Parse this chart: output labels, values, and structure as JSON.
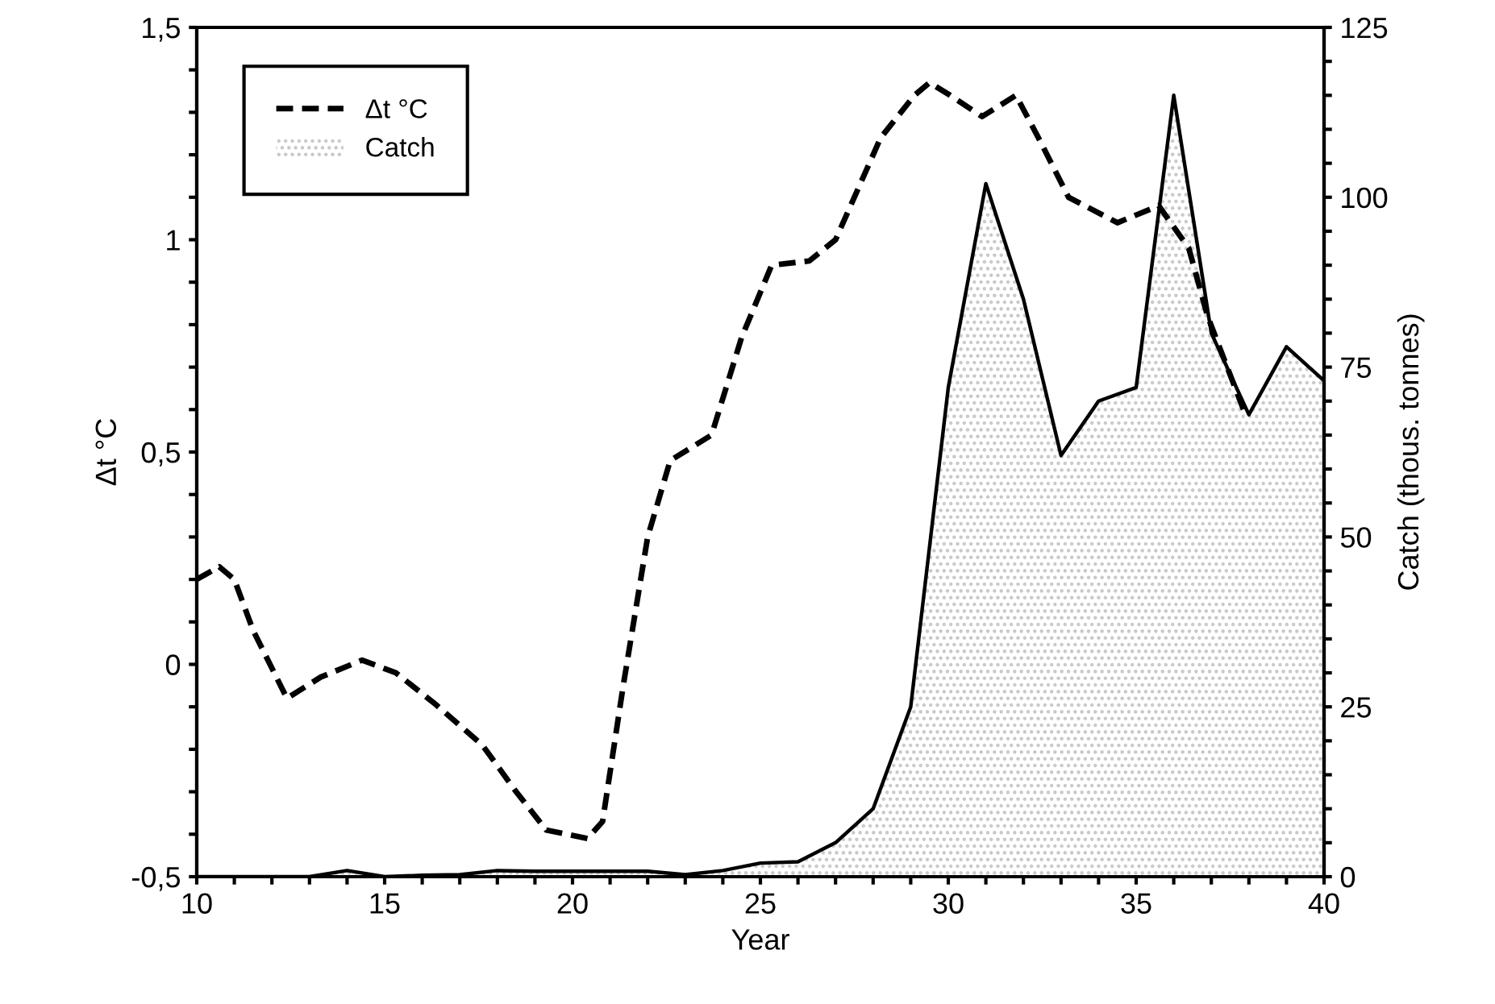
{
  "chart_data": {
    "type": "line",
    "xlabel": "Year",
    "ylabel": "Δt °C",
    "y2label": "Catch (thous. tonnes)",
    "legend": "top left",
    "xlim": [
      10,
      40
    ],
    "xticks": [
      10,
      {
        "value": 11,
        "label": null
      },
      {
        "value": 12,
        "label": null
      },
      {
        "value": 13,
        "label": null
      },
      {
        "value": 14,
        "label": null
      },
      15,
      {
        "value": 16,
        "label": null
      },
      {
        "value": 17,
        "label": null
      },
      {
        "value": 18,
        "label": null
      },
      {
        "value": 19,
        "label": null
      },
      20,
      {
        "value": 21,
        "label": null
      },
      {
        "value": 22,
        "label": null
      },
      {
        "value": 23,
        "label": null
      },
      {
        "value": 24,
        "label": null
      },
      25,
      {
        "value": 26,
        "label": null
      },
      {
        "value": 27,
        "label": null
      },
      {
        "value": 28,
        "label": null
      },
      {
        "value": 29,
        "label": null
      },
      30,
      {
        "value": 31,
        "label": null
      },
      {
        "value": 32,
        "label": null
      },
      {
        "value": 33,
        "label": null
      },
      {
        "value": 34,
        "label": null
      },
      35,
      {
        "value": 36,
        "label": null
      },
      {
        "value": 37,
        "label": null
      },
      {
        "value": 38,
        "label": null
      },
      {
        "value": 39,
        "label": null
      },
      40
    ],
    "ylim": [
      -0.5,
      1.5
    ],
    "yticks": [
      {
        "value": -0.5,
        "label": "-0,5"
      },
      {
        "value": -0.4,
        "label": null
      },
      {
        "value": -0.3,
        "label": null
      },
      {
        "value": -0.2,
        "label": null
      },
      {
        "value": -0.1,
        "label": null
      },
      0,
      {
        "value": 0.1,
        "label": null
      },
      {
        "value": 0.2,
        "label": null
      },
      {
        "value": 0.3,
        "label": null
      },
      {
        "value": 0.4,
        "label": null
      },
      {
        "value": 0.5,
        "label": "0,5"
      },
      {
        "value": 0.6,
        "label": null
      },
      {
        "value": 0.7,
        "label": null
      },
      {
        "value": 0.8,
        "label": null
      },
      {
        "value": 0.9,
        "label": null
      },
      1,
      {
        "value": 1.1,
        "label": null
      },
      {
        "value": 1.2,
        "label": null
      },
      {
        "value": 1.3,
        "label": null
      },
      {
        "value": 1.4,
        "label": null
      },
      {
        "value": 1.5,
        "label": "1,5"
      }
    ],
    "y2lim": [
      0,
      125
    ],
    "y2ticks": [
      0,
      {
        "value": 5,
        "label": null
      },
      {
        "value": 10,
        "label": null
      },
      {
        "value": 15,
        "label": null
      },
      {
        "value": 20,
        "label": null
      },
      25,
      {
        "value": 30,
        "label": null
      },
      {
        "value": 35,
        "label": null
      },
      {
        "value": 40,
        "label": null
      },
      {
        "value": 45,
        "label": null
      },
      50,
      {
        "value": 55,
        "label": null
      },
      {
        "value": 60,
        "label": null
      },
      {
        "value": 65,
        "label": null
      },
      {
        "value": 70,
        "label": null
      },
      75,
      {
        "value": 80,
        "label": null
      },
      {
        "value": 85,
        "label": null
      },
      {
        "value": 90,
        "label": null
      },
      {
        "value": 95,
        "label": null
      },
      100,
      {
        "value": 105,
        "label": null
      },
      {
        "value": 110,
        "label": null
      },
      {
        "value": 115,
        "label": null
      },
      {
        "value": 120,
        "label": null
      },
      125
    ],
    "series": [
      {
        "name": "Δt °C",
        "color": "#000000",
        "line_style": "dashed",
        "x": [
          10,
          10.6,
          11.0,
          11.5,
          12.4,
          13.3,
          14.4,
          15.3,
          16.3,
          17.6,
          18.5,
          19.3,
          20.4,
          20.8,
          21.35,
          22.0,
          22.6,
          23.7,
          24.5,
          25.3,
          26.3,
          27.0,
          28.2,
          29.1,
          29.5,
          30.05,
          30.9,
          31.8,
          32.4,
          33.2,
          34.5,
          35.6,
          36.4,
          36.9,
          37.9
        ],
        "values": [
          0.2,
          0.23,
          0.2,
          0.08,
          -0.08,
          -0.03,
          0.01,
          -0.02,
          -0.09,
          -0.19,
          -0.3,
          -0.39,
          -0.41,
          -0.37,
          -0.05,
          0.3,
          0.48,
          0.54,
          0.77,
          0.94,
          0.95,
          1.0,
          1.24,
          1.34,
          1.37,
          1.34,
          1.29,
          1.34,
          1.24,
          1.1,
          1.04,
          1.08,
          0.98,
          0.82,
          0.59
        ]
      },
      {
        "name": "Catch",
        "type": "area",
        "axis": "y2",
        "color": "#c8c8c8",
        "x": [
          10,
          11,
          12,
          13,
          14,
          15,
          16,
          17,
          18,
          19,
          20,
          21,
          22,
          23,
          24,
          25,
          26,
          27,
          28,
          29,
          30,
          31,
          32,
          33,
          34,
          35,
          36,
          37,
          38,
          39,
          40
        ],
        "values": [
          0,
          0,
          0,
          0,
          0.9,
          0,
          0.2,
          0.3,
          0.9,
          0.8,
          0.8,
          0.8,
          0.8,
          0.3,
          0.9,
          2,
          2.2,
          5,
          10,
          25,
          72,
          102,
          85,
          62,
          70,
          72,
          115,
          80,
          68,
          78,
          73
        ]
      }
    ]
  }
}
